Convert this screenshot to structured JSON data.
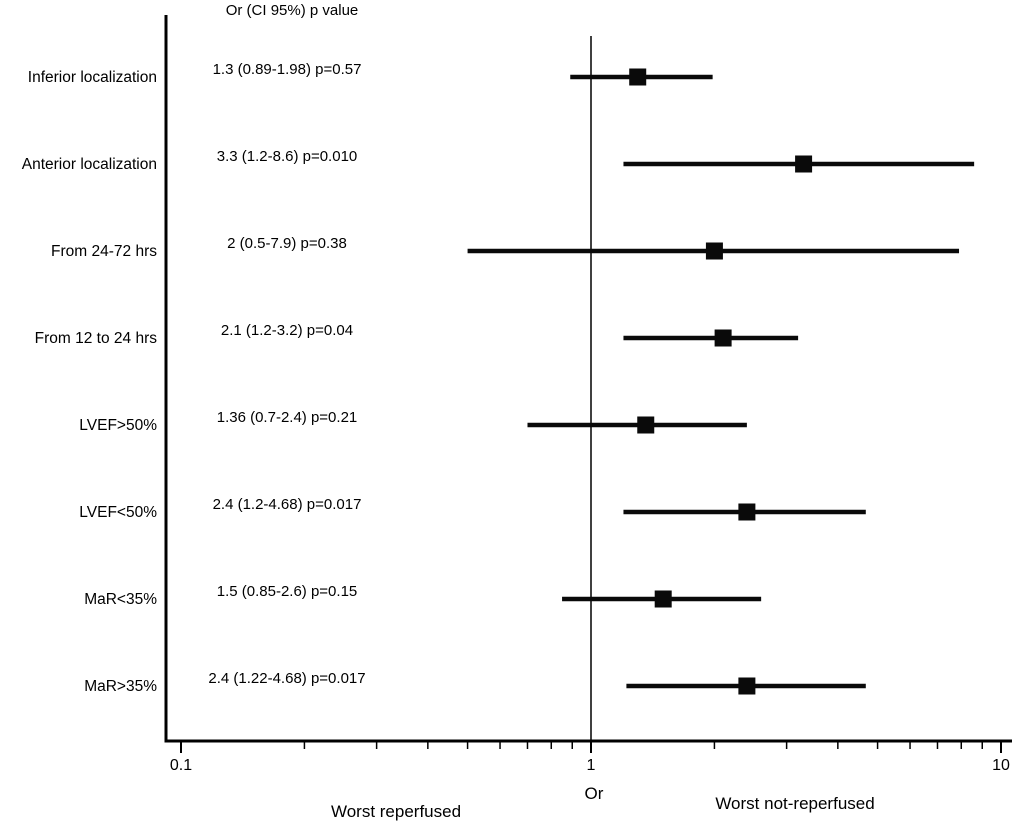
{
  "chart_data": {
    "type": "scatter",
    "variant": "forest-plot",
    "column_header": "Or (CI 95%) p value",
    "x_scale": "log",
    "xlim": [
      0.1,
      10
    ],
    "x_major_ticks": [
      0.1,
      1,
      10
    ],
    "x_major_tick_labels": [
      "0.1",
      "1",
      "10"
    ],
    "x_minor_ticks": [
      0.2,
      0.3,
      0.4,
      0.5,
      0.6,
      0.7,
      0.8,
      0.9,
      2,
      3,
      4,
      5,
      6,
      7,
      8,
      9
    ],
    "reference_line_x": 1,
    "xlabel": "Or",
    "xlabel_left": "Worst reperfused",
    "xlabel_right": "Worst not-reperfused",
    "marker_shape": "square",
    "grid": false,
    "legend": false,
    "colors": {
      "marker": "#0a0a0a",
      "ci_line": "#0a0a0a",
      "axis": "#000000",
      "text": "#000000",
      "background": "#ffffff"
    },
    "rows": [
      {
        "label": "Inferior localization",
        "annotation": "1.3 (0.89-1.98) p=0.57",
        "or": 1.3,
        "ci_low": 0.89,
        "ci_high": 1.98,
        "p": "0.57"
      },
      {
        "label": "Anterior localization",
        "annotation": "3.3 (1.2-8.6) p=0.010",
        "or": 3.3,
        "ci_low": 1.2,
        "ci_high": 8.6,
        "p": "0.010"
      },
      {
        "label": "From 24-72 hrs",
        "annotation": "2 (0.5-7.9) p=0.38",
        "or": 2,
        "ci_low": 0.5,
        "ci_high": 7.9,
        "p": "0.38"
      },
      {
        "label": "From 12 to 24 hrs",
        "annotation": "2.1 (1.2-3.2) p=0.04",
        "or": 2.1,
        "ci_low": 1.2,
        "ci_high": 3.2,
        "p": "0.04"
      },
      {
        "label": "LVEF>50%",
        "annotation": "1.36 (0.7-2.4) p=0.21",
        "or": 1.36,
        "ci_low": 0.7,
        "ci_high": 2.4,
        "p": "0.21"
      },
      {
        "label": "LVEF<50%",
        "annotation": "2.4 (1.2-4.68) p=0.017",
        "or": 2.4,
        "ci_low": 1.2,
        "ci_high": 4.68,
        "p": "0.017"
      },
      {
        "label": "MaR<35%",
        "annotation": "1.5 (0.85-2.6) p=0.15",
        "or": 1.5,
        "ci_low": 0.85,
        "ci_high": 2.6,
        "p": "0.15"
      },
      {
        "label": "MaR>35%",
        "annotation": "2.4 (1.22-4.68) p=0.017",
        "or": 2.4,
        "ci_low": 1.22,
        "ci_high": 4.68,
        "p": "0.017"
      }
    ]
  }
}
